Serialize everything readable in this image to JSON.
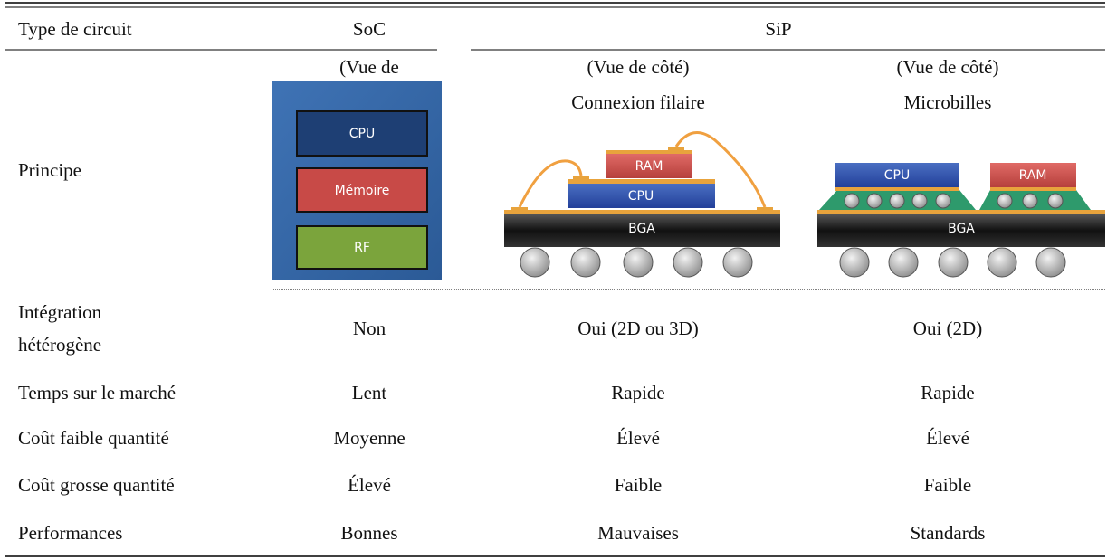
{
  "table": {
    "header": [
      "Type de circuit",
      "SoC",
      "SiP"
    ],
    "principe": {
      "label": "Principe",
      "soc": {
        "view": "(Vue de",
        "blocks": [
          "CPU",
          "Mémoire",
          "RF"
        ]
      },
      "sip_wire": {
        "view": "(Vue de côté)",
        "method": "Connexion filaire",
        "blocks": [
          "RAM",
          "CPU",
          "BGA"
        ]
      },
      "sip_bump": {
        "view": "(Vue de côté)",
        "method": "Microbilles",
        "blocks": [
          "CPU",
          "RAM",
          "BGA"
        ]
      }
    },
    "rows": [
      [
        [
          "Intégration",
          "hétérogène"
        ],
        "Non",
        "Oui (2D ou 3D)",
        "Oui (2D)"
      ],
      [
        "Temps sur le marché",
        "Lent",
        "Rapide",
        "Rapide"
      ],
      [
        "Coût faible quantité",
        "Moyenne",
        "Élevé",
        "Élevé"
      ],
      [
        "Coût grosse quantité",
        "Élevé",
        "Faible",
        "Faible"
      ],
      [
        "Performances",
        "Bonnes",
        "Mauvaises",
        "Standards"
      ]
    ]
  }
}
